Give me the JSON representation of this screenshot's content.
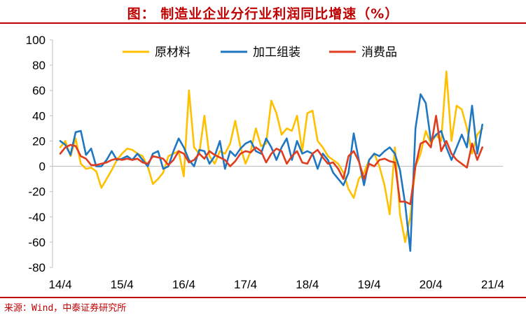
{
  "page": {
    "title": "图：  制造业企业分行业利润同比增速（%）",
    "source": "来源：Wind，中泰证券研究所"
  },
  "chart_data": {
    "type": "line",
    "title": "制造业企业分行业利润同比增速（%）",
    "xlabel": "",
    "ylabel": "",
    "ylim": [
      -80,
      100
    ],
    "yticks": [
      100,
      80,
      60,
      40,
      20,
      0,
      -20,
      -40,
      -60,
      -80
    ],
    "xticks": [
      "14/4",
      "15/4",
      "16/4",
      "17/4",
      "18/4",
      "19/4",
      "20/4",
      "21/4"
    ],
    "xrange": [
      0,
      84
    ],
    "grid": false,
    "legend_position": "top",
    "series": [
      {
        "name": "原材料",
        "color": "#ffc000",
        "points": [
          [
            0,
            15
          ],
          [
            1,
            20
          ],
          [
            2,
            8
          ],
          [
            3,
            22
          ],
          [
            4,
            2
          ],
          [
            5,
            -2
          ],
          [
            6,
            -1
          ],
          [
            7,
            -4
          ],
          [
            8,
            -17
          ],
          [
            9,
            -10
          ],
          [
            10,
            -3
          ],
          [
            11,
            5
          ],
          [
            12,
            10
          ],
          [
            13,
            14
          ],
          [
            14,
            13
          ],
          [
            15,
            10
          ],
          [
            16,
            8
          ],
          [
            17,
            0
          ],
          [
            18,
            -14
          ],
          [
            19,
            -10
          ],
          [
            20,
            -5
          ],
          [
            21,
            8
          ],
          [
            22,
            10
          ],
          [
            23,
            12
          ],
          [
            24,
            -8
          ],
          [
            25,
            60
          ],
          [
            26,
            15
          ],
          [
            27,
            10
          ],
          [
            28,
            40
          ],
          [
            29,
            8
          ],
          [
            30,
            2
          ],
          [
            31,
            12
          ],
          [
            32,
            10
          ],
          [
            33,
            18
          ],
          [
            34,
            36
          ],
          [
            35,
            15
          ],
          [
            36,
            2
          ],
          [
            37,
            12
          ],
          [
            38,
            30
          ],
          [
            39,
            16
          ],
          [
            40,
            18
          ],
          [
            41,
            52
          ],
          [
            42,
            42
          ],
          [
            43,
            25
          ],
          [
            44,
            30
          ],
          [
            45,
            28
          ],
          [
            46,
            40
          ],
          [
            47,
            12
          ],
          [
            48,
            42
          ],
          [
            49,
            44
          ],
          [
            50,
            20
          ],
          [
            51,
            15
          ],
          [
            52,
            8
          ],
          [
            53,
            5
          ],
          [
            54,
            2
          ],
          [
            55,
            -5
          ],
          [
            56,
            -18
          ],
          [
            57,
            -25
          ],
          [
            58,
            -10
          ],
          [
            59,
            -5
          ],
          [
            60,
            5
          ],
          [
            61,
            10
          ],
          [
            62,
            0
          ],
          [
            63,
            -15
          ],
          [
            64,
            -38
          ],
          [
            65,
            15
          ],
          [
            66,
            -38
          ],
          [
            67,
            -60
          ],
          [
            68,
            -40
          ],
          [
            69,
            0
          ],
          [
            70,
            10
          ],
          [
            71,
            28
          ],
          [
            72,
            18
          ],
          [
            73,
            25
          ],
          [
            74,
            20
          ],
          [
            75,
            75
          ],
          [
            76,
            20
          ],
          [
            77,
            48
          ],
          [
            78,
            45
          ],
          [
            79,
            30
          ],
          [
            80,
            10
          ],
          [
            81,
            25
          ],
          [
            82,
            30
          ]
        ]
      },
      {
        "name": "加工组装",
        "color": "#1f77c2",
        "points": [
          [
            0,
            20
          ],
          [
            1,
            17
          ],
          [
            2,
            9
          ],
          [
            3,
            27
          ],
          [
            4,
            28
          ],
          [
            5,
            9
          ],
          [
            6,
            14
          ],
          [
            7,
            0
          ],
          [
            8,
            0
          ],
          [
            9,
            5
          ],
          [
            10,
            12
          ],
          [
            11,
            5
          ],
          [
            12,
            6
          ],
          [
            13,
            8
          ],
          [
            14,
            5
          ],
          [
            15,
            10
          ],
          [
            16,
            5
          ],
          [
            17,
            0
          ],
          [
            18,
            10
          ],
          [
            19,
            12
          ],
          [
            20,
            -2
          ],
          [
            21,
            0
          ],
          [
            22,
            12
          ],
          [
            23,
            22
          ],
          [
            24,
            15
          ],
          [
            25,
            5
          ],
          [
            26,
            0
          ],
          [
            27,
            13
          ],
          [
            28,
            12
          ],
          [
            29,
            2
          ],
          [
            30,
            8
          ],
          [
            31,
            20
          ],
          [
            32,
            -2
          ],
          [
            33,
            12
          ],
          [
            34,
            8
          ],
          [
            35,
            14
          ],
          [
            36,
            18
          ],
          [
            37,
            20
          ],
          [
            38,
            12
          ],
          [
            39,
            10
          ],
          [
            40,
            22
          ],
          [
            41,
            15
          ],
          [
            42,
            5
          ],
          [
            43,
            15
          ],
          [
            44,
            22
          ],
          [
            45,
            5
          ],
          [
            46,
            20
          ],
          [
            47,
            10
          ],
          [
            48,
            12
          ],
          [
            49,
            10
          ],
          [
            50,
            -2
          ],
          [
            51,
            10
          ],
          [
            52,
            5
          ],
          [
            53,
            -5
          ],
          [
            54,
            -10
          ],
          [
            55,
            -15
          ],
          [
            56,
            -5
          ],
          [
            57,
            26
          ],
          [
            58,
            5
          ],
          [
            59,
            -15
          ],
          [
            60,
            5
          ],
          [
            61,
            10
          ],
          [
            62,
            8
          ],
          [
            63,
            12
          ],
          [
            64,
            15
          ],
          [
            65,
            10
          ],
          [
            66,
            -3
          ],
          [
            67,
            -30
          ],
          [
            68,
            -67
          ],
          [
            69,
            30
          ],
          [
            70,
            57
          ],
          [
            71,
            50
          ],
          [
            72,
            20
          ],
          [
            73,
            25
          ],
          [
            74,
            28
          ],
          [
            75,
            15
          ],
          [
            76,
            5
          ],
          [
            77,
            15
          ],
          [
            78,
            25
          ],
          [
            79,
            15
          ],
          [
            80,
            48
          ],
          [
            81,
            10
          ],
          [
            82,
            33
          ]
        ]
      },
      {
        "name": "消费品",
        "color": "#e03c1f",
        "points": [
          [
            0,
            10
          ],
          [
            1,
            15
          ],
          [
            2,
            17
          ],
          [
            3,
            16
          ],
          [
            4,
            8
          ],
          [
            5,
            6
          ],
          [
            6,
            1
          ],
          [
            7,
            1
          ],
          [
            8,
            2
          ],
          [
            9,
            3
          ],
          [
            10,
            5
          ],
          [
            11,
            6
          ],
          [
            12,
            5
          ],
          [
            13,
            6
          ],
          [
            14,
            5
          ],
          [
            15,
            6
          ],
          [
            16,
            3
          ],
          [
            17,
            2
          ],
          [
            18,
            8
          ],
          [
            19,
            7
          ],
          [
            20,
            6
          ],
          [
            21,
            1
          ],
          [
            22,
            5
          ],
          [
            23,
            12
          ],
          [
            24,
            10
          ],
          [
            25,
            3
          ],
          [
            26,
            5
          ],
          [
            27,
            10
          ],
          [
            28,
            6
          ],
          [
            29,
            12
          ],
          [
            30,
            9
          ],
          [
            31,
            7
          ],
          [
            32,
            5
          ],
          [
            33,
            0
          ],
          [
            34,
            4
          ],
          [
            35,
            10
          ],
          [
            36,
            12
          ],
          [
            37,
            11
          ],
          [
            38,
            15
          ],
          [
            39,
            12
          ],
          [
            40,
            3
          ],
          [
            41,
            10
          ],
          [
            42,
            14
          ],
          [
            43,
            12
          ],
          [
            44,
            2
          ],
          [
            45,
            8
          ],
          [
            46,
            12
          ],
          [
            47,
            3
          ],
          [
            48,
            2
          ],
          [
            49,
            10
          ],
          [
            50,
            13
          ],
          [
            51,
            7
          ],
          [
            52,
            2
          ],
          [
            53,
            3
          ],
          [
            54,
            -2
          ],
          [
            55,
            -10
          ],
          [
            56,
            8
          ],
          [
            57,
            12
          ],
          [
            58,
            4
          ],
          [
            59,
            -10
          ],
          [
            60,
            2
          ],
          [
            61,
            0
          ],
          [
            62,
            5
          ],
          [
            63,
            6
          ],
          [
            64,
            4
          ],
          [
            65,
            3
          ],
          [
            66,
            -28
          ],
          [
            67,
            -28
          ],
          [
            68,
            -30
          ],
          [
            69,
            0
          ],
          [
            70,
            18
          ],
          [
            71,
            20
          ],
          [
            72,
            15
          ],
          [
            73,
            40
          ],
          [
            74,
            12
          ],
          [
            75,
            20
          ],
          [
            76,
            10
          ],
          [
            77,
            5
          ],
          [
            78,
            2
          ],
          [
            79,
            -1
          ],
          [
            80,
            18
          ],
          [
            81,
            5
          ],
          [
            82,
            15
          ]
        ]
      }
    ]
  }
}
